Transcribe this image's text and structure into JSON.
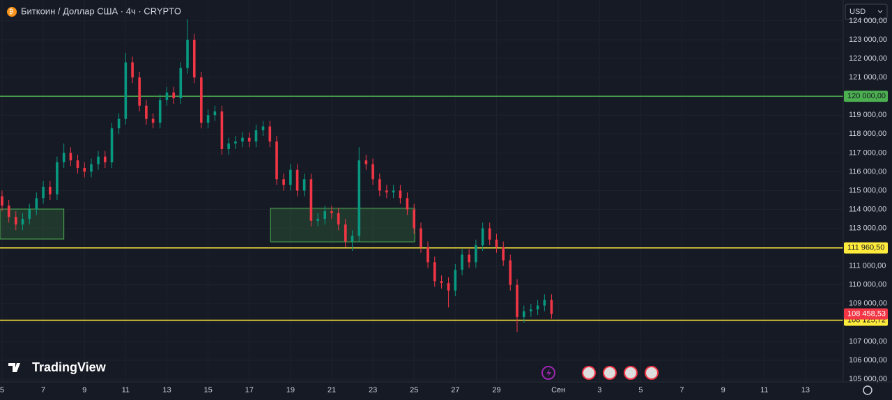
{
  "header": {
    "title": "Биткоин / Доллар США · 4ч · CRYPTO",
    "currency": "USD",
    "logo": "TradingView"
  },
  "chart_data": {
    "type": "candlestick",
    "x": [
      5,
      5.33,
      5.67,
      6,
      6.33,
      6.67,
      7,
      7.33,
      7.67,
      8,
      8.33,
      8.67,
      9,
      9.33,
      9.67,
      10,
      10.33,
      10.67,
      11,
      11.33,
      11.67,
      12,
      12.33,
      12.67,
      13,
      13.33,
      13.67,
      14,
      14.33,
      14.67,
      15,
      15.33,
      15.67,
      16,
      16.33,
      16.67,
      17,
      17.33,
      17.67,
      18,
      18.33,
      18.67,
      19,
      19.33,
      19.67,
      20,
      20.33,
      20.67,
      21,
      21.33,
      21.67,
      22,
      22.33,
      22.67,
      23,
      23.33,
      23.67,
      24,
      24.33,
      24.67,
      25,
      25.33,
      25.67,
      26,
      26.33,
      26.67,
      27,
      27.33,
      27.67,
      28,
      28.33,
      28.67,
      29,
      29.33,
      29.67,
      30,
      30.33,
      30.67,
      31,
      31.33,
      31.67
    ],
    "open": [
      114700,
      114200,
      113600,
      113200,
      113500,
      114000,
      114600,
      115200,
      114800,
      116500,
      117000,
      116600,
      116200,
      116000,
      116400,
      116800,
      116500,
      118300,
      118800,
      121800,
      121000,
      119500,
      118800,
      118600,
      119800,
      120200,
      119900,
      121500,
      123000,
      121000,
      118600,
      119000,
      119200,
      117200,
      117500,
      117600,
      117800,
      117600,
      118200,
      118400,
      117600,
      115600,
      115300,
      116100,
      115000,
      115600,
      113400,
      113500,
      113900,
      113800,
      113200,
      112300,
      112600,
      116600,
      116400,
      115600,
      115000,
      114900,
      115000,
      114600,
      114000,
      113000,
      112000,
      111200,
      110200,
      110100,
      109700,
      110800,
      111600,
      111200,
      112100,
      113000,
      112400,
      112000,
      111300,
      110000,
      108300,
      108600,
      108700,
      108900,
      109200
    ],
    "high": [
      115000,
      114500,
      113900,
      113800,
      114300,
      114900,
      115500,
      115500,
      116800,
      117500,
      117300,
      116900,
      116500,
      116700,
      117100,
      117100,
      118600,
      119100,
      122300,
      122100,
      121300,
      119800,
      119100,
      120100,
      120500,
      120500,
      121800,
      124100,
      123300,
      121300,
      119300,
      119500,
      119500,
      117800,
      117900,
      118100,
      118100,
      118500,
      118700,
      118700,
      117900,
      115900,
      116400,
      116400,
      115900,
      115900,
      113800,
      114200,
      114200,
      114100,
      113500,
      112900,
      117300,
      116900,
      116700,
      115900,
      115300,
      115300,
      115300,
      114900,
      114300,
      113300,
      112300,
      111500,
      110500,
      110400,
      111100,
      111900,
      111900,
      112400,
      113300,
      113300,
      112700,
      112300,
      111600,
      110300,
      108900,
      109000,
      109200,
      109500,
      109500
    ],
    "low": [
      113900,
      113300,
      112900,
      112900,
      113200,
      113700,
      114300,
      114500,
      114500,
      116200,
      116300,
      115900,
      115700,
      115700,
      116100,
      116200,
      116200,
      118000,
      118500,
      120700,
      119200,
      118500,
      118300,
      118300,
      119500,
      119600,
      119600,
      121200,
      120700,
      118300,
      118300,
      118700,
      116900,
      116900,
      117200,
      117300,
      117300,
      117300,
      117900,
      117300,
      115300,
      115000,
      115000,
      114700,
      114700,
      113100,
      113100,
      113200,
      113500,
      112900,
      112000,
      111800,
      112300,
      116100,
      115300,
      114700,
      114600,
      114600,
      114300,
      113700,
      112700,
      111700,
      110900,
      109900,
      109800,
      108800,
      109400,
      110500,
      110900,
      110900,
      111800,
      112100,
      111700,
      111000,
      109700,
      107500,
      108000,
      108300,
      108400,
      108600,
      108200
    ],
    "close": [
      114200,
      113600,
      113200,
      113500,
      114000,
      114600,
      115200,
      114800,
      116500,
      117000,
      116600,
      116200,
      116000,
      116400,
      116800,
      116500,
      118300,
      118800,
      121800,
      121000,
      119500,
      118800,
      118600,
      119800,
      120200,
      119900,
      121500,
      123000,
      121000,
      118600,
      119000,
      119200,
      117200,
      117500,
      117600,
      117800,
      117600,
      118200,
      118400,
      117600,
      115600,
      115300,
      116100,
      115000,
      115600,
      113400,
      113500,
      113900,
      113800,
      113200,
      112300,
      112600,
      116600,
      116400,
      115600,
      115000,
      114900,
      115000,
      114600,
      114000,
      113000,
      112000,
      111200,
      110200,
      110100,
      109700,
      110800,
      111600,
      111200,
      112100,
      113000,
      112400,
      112000,
      111300,
      110000,
      108300,
      108600,
      108700,
      108900,
      109200,
      108458.53
    ],
    "last_label": "108 458,53",
    "up_color": "#089981",
    "down_color": "#f23645",
    "xlim": [
      4.9,
      45.83
    ],
    "ylim": [
      104855,
      125106
    ],
    "xticks": [
      5,
      7,
      9,
      11,
      13,
      15,
      17,
      19,
      21,
      23,
      25,
      27,
      29,
      {
        "value": 32,
        "label": "Сен"
      },
      {
        "value": 34,
        "label": "3"
      },
      {
        "value": 36,
        "label": "5"
      },
      {
        "value": 38,
        "label": "7"
      },
      {
        "value": 40,
        "label": "9"
      },
      {
        "value": 42,
        "label": "11"
      },
      {
        "value": 44,
        "label": "13"
      }
    ],
    "yticks": [
      {
        "value": 105000,
        "label": "105 000,00"
      },
      {
        "value": 106000,
        "label": "106 000,00"
      },
      {
        "value": 107000,
        "label": "107 000,00"
      },
      {
        "value": 108000,
        "label": "108 000,00"
      },
      {
        "value": 109000,
        "label": "109 000,00"
      },
      {
        "value": 110000,
        "label": "110 000,00"
      },
      {
        "value": 111000,
        "label": "111 000,00"
      },
      {
        "value": 112000,
        "label": "112 000,00"
      },
      {
        "value": 113000,
        "label": "113 000,00"
      },
      {
        "value": 114000,
        "label": "114 000,00"
      },
      {
        "value": 115000,
        "label": "115 000,00"
      },
      {
        "value": 116000,
        "label": "116 000,00"
      },
      {
        "value": 117000,
        "label": "117 000,00"
      },
      {
        "value": 118000,
        "label": "118 000,00"
      },
      {
        "value": 119000,
        "label": "119 000,00"
      },
      {
        "value": 120000,
        "label": "120 000,00"
      },
      {
        "value": 121000,
        "label": "121 000,00"
      },
      {
        "value": 122000,
        "label": "122 000,00"
      },
      {
        "value": 123000,
        "label": "123 000,00"
      },
      {
        "value": 124000,
        "label": "124 000,00"
      }
    ],
    "grid": true,
    "levels": [
      {
        "value": 120000,
        "label": "120 000,00",
        "color": "#4caf50"
      },
      {
        "value": 111960.5,
        "label": "111 960,50",
        "color": "#ffeb3b"
      },
      {
        "value": 108125.72,
        "label": "108 125,72",
        "color": "#ffeb3b"
      }
    ],
    "zones": [
      {
        "x": [
          4.9,
          8.0
        ],
        "y": [
          112430,
          114020
        ]
      },
      {
        "x": [
          18.03,
          25.03
        ],
        "y": [
          112280,
          114060
        ]
      }
    ]
  }
}
